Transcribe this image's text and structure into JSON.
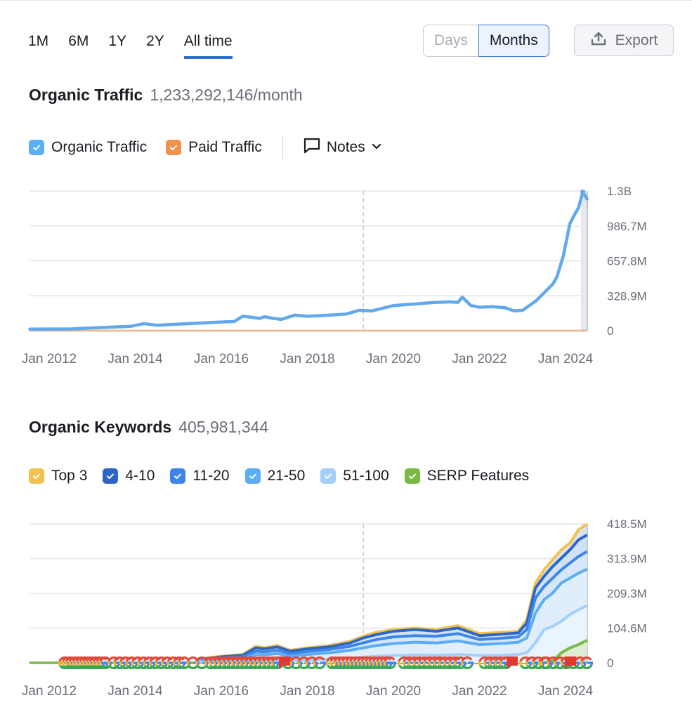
{
  "periods": [
    "1M",
    "6M",
    "1Y",
    "2Y",
    "All time"
  ],
  "active_period": "All time",
  "granularity": {
    "days": "Days",
    "months": "Months",
    "selected": "Months"
  },
  "export_label": "Export",
  "traffic": {
    "title": "Organic Traffic",
    "value": "1,233,292,146/month",
    "legend": [
      {
        "label": "Organic Traffic",
        "color": "#5aaef5",
        "checked": true
      },
      {
        "label": "Paid Traffic",
        "color": "#f0914e",
        "checked": true
      }
    ],
    "notes_label": "Notes"
  },
  "keywords": {
    "title": "Organic Keywords",
    "value": "405,981,344",
    "legend": [
      {
        "label": "Top 3",
        "color": "#f4c14f",
        "checked": true
      },
      {
        "label": "4-10",
        "color": "#2d66c4",
        "checked": true
      },
      {
        "label": "11-20",
        "color": "#3c86e8",
        "checked": true
      },
      {
        "label": "21-50",
        "color": "#5aaef5",
        "checked": true
      },
      {
        "label": "51-100",
        "color": "#a3cffa",
        "checked": true
      },
      {
        "label": "SERP Features",
        "color": "#7bb944",
        "checked": true
      }
    ]
  },
  "chart_data": [
    {
      "type": "line",
      "title": "Organic Traffic",
      "x_ticks": [
        "Jan 2012",
        "Jan 2014",
        "Jan 2016",
        "Jan 2018",
        "Jan 2020",
        "Jan 2022",
        "Jan 2024"
      ],
      "x_tick_years": [
        2012,
        2014,
        2016,
        2018,
        2020,
        2022,
        2024
      ],
      "xlim": [
        2011.55,
        2024.5
      ],
      "y_ticks": [
        "0",
        "328.9M",
        "657.8M",
        "986.7M",
        "1.3B"
      ],
      "ylim": [
        0,
        1315600000
      ],
      "marker_year": 2019.3,
      "series": [
        {
          "name": "Organic Traffic",
          "color": "#62a9ec",
          "x": [
            2011.55,
            2012.5,
            2013.0,
            2013.5,
            2013.9,
            2014.2,
            2014.5,
            2015.0,
            2015.5,
            2016.0,
            2016.3,
            2016.5,
            2016.9,
            2017.0,
            2017.2,
            2017.4,
            2017.7,
            2018.0,
            2018.5,
            2018.9,
            2019.2,
            2019.5,
            2019.8,
            2020.0,
            2020.3,
            2020.5,
            2020.8,
            2021.0,
            2021.3,
            2021.5,
            2021.6,
            2021.8,
            2022.0,
            2022.3,
            2022.6,
            2022.8,
            2023.0,
            2023.3,
            2023.5,
            2023.7,
            2023.8,
            2023.95,
            2024.1,
            2024.2,
            2024.3,
            2024.4,
            2024.5
          ],
          "y": [
            8000000,
            10000000,
            20000000,
            28000000,
            35000000,
            60000000,
            45000000,
            55000000,
            65000000,
            75000000,
            80000000,
            130000000,
            110000000,
            125000000,
            110000000,
            100000000,
            140000000,
            130000000,
            140000000,
            150000000,
            185000000,
            180000000,
            210000000,
            230000000,
            240000000,
            245000000,
            255000000,
            260000000,
            265000000,
            260000000,
            310000000,
            230000000,
            215000000,
            220000000,
            210000000,
            180000000,
            185000000,
            270000000,
            350000000,
            430000000,
            500000000,
            700000000,
            1000000000,
            1080000000,
            1150000000,
            1300000000,
            1233000000
          ]
        },
        {
          "name": "Paid Traffic",
          "color": "#f0914e",
          "x": [
            2011.55,
            2024.5
          ],
          "y": [
            0,
            0
          ]
        }
      ]
    },
    {
      "type": "area",
      "title": "Organic Keywords",
      "x_ticks": [
        "Jan 2012",
        "Jan 2014",
        "Jan 2016",
        "Jan 2018",
        "Jan 2020",
        "Jan 2022",
        "Jan 2024"
      ],
      "x_tick_years": [
        2012,
        2014,
        2016,
        2018,
        2020,
        2022,
        2024
      ],
      "xlim": [
        2011.55,
        2024.5
      ],
      "y_ticks": [
        "0",
        "104.6M",
        "209.3M",
        "313.9M",
        "418.5M"
      ],
      "ylim": [
        0,
        418500000
      ],
      "marker_year": 2019.3,
      "x": [
        2015.4,
        2016.0,
        2016.5,
        2016.8,
        2017.0,
        2017.3,
        2017.6,
        2018.0,
        2018.5,
        2019.0,
        2019.3,
        2019.6,
        2020.0,
        2020.5,
        2021.0,
        2021.5,
        2022.0,
        2022.5,
        2022.9,
        2023.1,
        2023.3,
        2023.5,
        2023.7,
        2023.9,
        2024.1,
        2024.3,
        2024.5
      ],
      "series": [
        {
          "name": "Top 3",
          "color": "#f4c14f",
          "y": [
            10000000,
            20000000,
            25000000,
            50000000,
            45000000,
            52000000,
            38000000,
            45000000,
            52000000,
            65000000,
            80000000,
            92000000,
            100000000,
            105000000,
            100000000,
            112000000,
            88000000,
            92000000,
            95000000,
            130000000,
            240000000,
            280000000,
            310000000,
            340000000,
            360000000,
            400000000,
            418000000
          ]
        },
        {
          "name": "4-10",
          "color": "#2d66c4",
          "y": [
            9000000,
            18000000,
            23000000,
            45000000,
            42000000,
            48000000,
            35000000,
            42000000,
            48000000,
            60000000,
            75000000,
            85000000,
            95000000,
            100000000,
            95000000,
            105000000,
            82000000,
            86000000,
            90000000,
            120000000,
            225000000,
            260000000,
            290000000,
            315000000,
            340000000,
            370000000,
            385000000
          ]
        },
        {
          "name": "11-20",
          "color": "#3c86e8",
          "y": [
            7000000,
            14000000,
            18000000,
            35000000,
            33000000,
            38000000,
            28000000,
            34000000,
            40000000,
            50000000,
            60000000,
            70000000,
            78000000,
            82000000,
            80000000,
            88000000,
            70000000,
            74000000,
            78000000,
            100000000,
            195000000,
            230000000,
            255000000,
            280000000,
            300000000,
            320000000,
            335000000
          ]
        },
        {
          "name": "21-50",
          "color": "#5aaef5",
          "y": [
            5000000,
            10000000,
            13000000,
            25000000,
            24000000,
            28000000,
            20000000,
            25000000,
            30000000,
            38000000,
            45000000,
            52000000,
            58000000,
            62000000,
            60000000,
            66000000,
            55000000,
            58000000,
            62000000,
            75000000,
            150000000,
            190000000,
            210000000,
            240000000,
            255000000,
            270000000,
            282000000
          ]
        },
        {
          "name": "51-100",
          "color": "#a3cffa",
          "y": [
            2000000,
            4000000,
            5000000,
            8000000,
            8000000,
            9000000,
            7000000,
            9000000,
            11000000,
            14000000,
            17000000,
            20000000,
            22000000,
            24000000,
            23000000,
            25000000,
            22000000,
            23000000,
            25000000,
            30000000,
            60000000,
            100000000,
            110000000,
            125000000,
            145000000,
            160000000,
            172000000
          ]
        },
        {
          "name": "SERP Features",
          "color": "#7bb944",
          "y": [
            0,
            0,
            0,
            0,
            0,
            0,
            0,
            0,
            0,
            0,
            0,
            0,
            0,
            0,
            0,
            0,
            0,
            0,
            0,
            0,
            0,
            0,
            5000000,
            30000000,
            45000000,
            55000000,
            68000000
          ]
        }
      ],
      "serp_baseline_color": "#7bb944"
    }
  ]
}
